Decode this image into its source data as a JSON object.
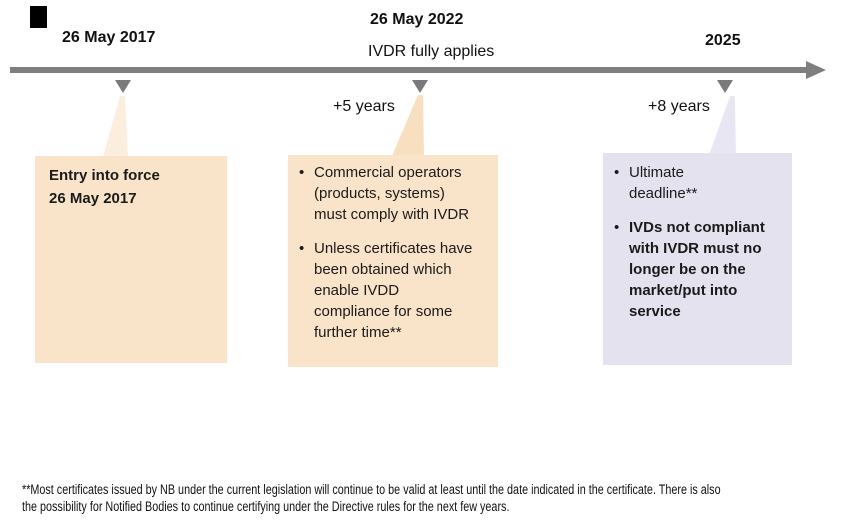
{
  "timeline": {
    "milestones": {
      "m2017": {
        "date": "26 May 2017"
      },
      "m2022": {
        "date": "26 May 2022",
        "sub": "IVDR fully applies"
      },
      "m2025": {
        "date": "2025"
      }
    },
    "offsets": {
      "five": "+5 years",
      "eight": "+8 years"
    }
  },
  "callouts": {
    "entry": {
      "line1": "Entry into force",
      "line2": "26 May 2017"
    },
    "compliance": {
      "bullet1": "Commercial operators (products, systems) must comply with IVDR",
      "bullet2": "Unless certificates have been obtained which enable IVDD compliance for some further time**"
    },
    "deadline": {
      "bullet1": "Ultimate deadline**",
      "bullet2": "IVDs not compliant with IVDR must no longer be on the market/put into service"
    }
  },
  "footnote": {
    "line1": "**Most certificates issued by NB under the current legislation will continue to be valid at least until the date indicated in the certificate. There is also",
    "line2": "the possibility for Notified Bodies to continue certifying under the Directive rules for the next few years."
  },
  "glyphs": {
    "bullet": "•"
  },
  "colors": {
    "peach_fill": "#f9e4ca",
    "peach_tail_light": "#fbeedd",
    "peach_tail_deep": "#f8dfc0",
    "lavender_fill": "#e5e2f0",
    "lavender_tail": "#e9e6f4",
    "timeline_gray": "#7f7f7f",
    "marker_gray": "#7a7a7a",
    "corner_black": "#000000",
    "text": "#111111"
  }
}
